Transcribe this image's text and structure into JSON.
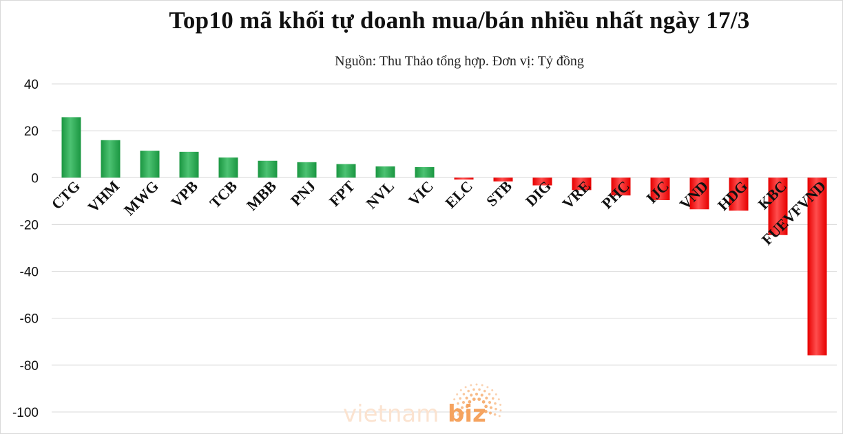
{
  "chart_data": {
    "type": "bar",
    "title": "Top10 mã khối tự doanh mua/bán nhiều nhất ngày 17/3",
    "subtitle": "Nguồn: Thu Thảo tổng hợp. Đơn vị: Tỷ đồng",
    "categories": [
      "CTG",
      "VHM",
      "MWG",
      "VPB",
      "TCB",
      "MBB",
      "PNJ",
      "FPT",
      "NVL",
      "VIC",
      "ELC",
      "STB",
      "DIG",
      "VRE",
      "PHC",
      "IJC",
      "VND",
      "HDG",
      "KBC",
      "FUEVFVND"
    ],
    "values": [
      25.8,
      16,
      11.5,
      11,
      8.6,
      7.2,
      6.6,
      5.8,
      4.8,
      4.5,
      -0.8,
      -1.6,
      -3.3,
      -5.3,
      -7.6,
      -9.6,
      -13.5,
      -14.1,
      -24.5,
      -75.8
    ],
    "ylim": [
      -100,
      40
    ],
    "yticks": [
      40,
      20,
      0,
      -20,
      -40,
      -60,
      -80,
      -100
    ],
    "colors": {
      "positive": "#1a9641",
      "positive_light": "#4cc272",
      "negative": "#e60000",
      "negative_light": "#ff4d4d"
    },
    "grid": true,
    "legend": "none"
  },
  "watermark": {
    "text_a": "vietnam",
    "text_b": "biz",
    "color_a": "#fbe3d0",
    "color_b": "#f5a35f",
    "icon": "sunburst-dots-icon"
  }
}
